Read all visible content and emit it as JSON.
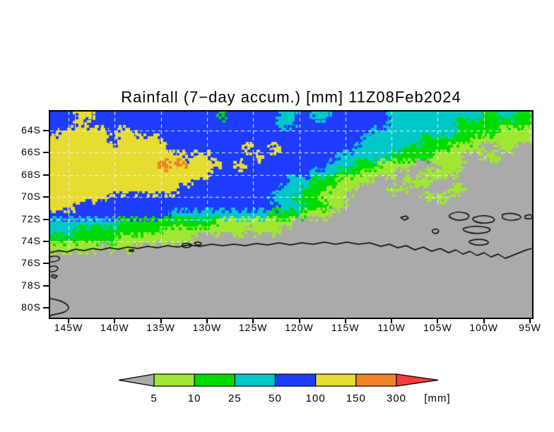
{
  "page_background": "#ffffff",
  "chart_data": {
    "type": "heatmap",
    "title": "Rainfall (7−day accum.) [mm] 11Z08Feb2024",
    "xlabel": "",
    "ylabel": "",
    "x_ticks": [
      "145W",
      "140W",
      "135W",
      "130W",
      "125W",
      "120W",
      "115W",
      "110W",
      "105W",
      "100W",
      "95W"
    ],
    "y_ticks": [
      "64S",
      "66S",
      "68S",
      "70S",
      "72S",
      "74S",
      "76S",
      "78S",
      "80S"
    ],
    "units": "[mm]",
    "levels": [
      5,
      10,
      25,
      50,
      100,
      150,
      300
    ],
    "legend_position": "bottom",
    "grid_on": true,
    "gridline_color": "#f2f2f2",
    "coastline_color": "#000000",
    "palette": {
      ".": "#aaaaaa",
      "L": "#a0e632",
      "G": "#00dc00",
      "C": "#00c8c8",
      "B": "#1e3cff",
      "Y": "#e6dc32",
      "O": "#f08228",
      "R": "#fa3c3c"
    },
    "palette_meaning": {
      ".": "below 5 mm",
      "L": "5-10 mm",
      "G": "10-25 mm",
      "C": "25-50 mm",
      "B": "50-100 mm",
      "Y": "100-150 mm",
      "O": "150-300 mm",
      "R": "above 300 mm"
    },
    "grid": [
      "BBBYYBBBBBBBBBBBBBBBGBBBBBBCCBBCCBBBBBBBCCCCCCCCCCCGGCCGG",
      "BBBYBBBBBBBBBBBBBBBBBBBBBBBCCBBBBBBBBBBBCCCCCCCCGGGGGGGGG",
      "BYYYYYYBYYBBBBBBBBBBBBBBBBBBBBBBBBBBBBCCCCCCCCCCGGGGGLLLL",
      "YYYYYYYBYYYYYBBBBBBBBBBBBBBBBBBBBBBBBCCCCCCCGGGGGGLLLLLLL",
      "YYYYYYYYYYYYYYBBBBBBBBBYBBYBBBBBBBBBCCCCCCGGGGGLLLL..LL..",
      "YYYYYYYYYYYYYYYYBYYBBBBBYBBBBBBBBBCCCCCCGGGGGLLLL..LL....",
      "YYYYYYYYYYYYYOYOYYYYBBYBBBBBBBBBBCCCGGGLLLL...LLL........",
      "YYYYYYYYYYYYYYYYYYYBBBBBBBBBBBBCCCGGGLLLL...LLLL.........",
      "YYYYYYYYYYYYYYYYYBBBBBBBBBBBCCCGGGLLLL....LLL............",
      "YYYYYYYYYYYYYYYBBBBBBBBBBBBCCCGGGLLL....LL.....LL........",
      "YYYYYYYBBBBBBBBBBBBBBBBBBBCCCGGGLLL.........LLL..........",
      "YYYBBBBBBBBBBBBBBBBBBBBBBBBCCCGGGLL......................",
      "BBBBBBBBBBBBBBCCCCCCCCCCCCGGGGLLL........................",
      "CCCCCCCCGGGGGGGGGGGGLLLLLLLLL............................",
      "CCCGGGGGGGGGGLLLLLLLLLL.LLL..............................",
      "GGGGGGGGLLLLLLLLL........................................",
      "LLLLLL.LLL...............................................",
      ".........................................................",
      ".........................................................",
      ".........................................................",
      ".........................................................",
      ".........................................................",
      ".........................................................",
      ".........................................................",
      "........................................................."
    ],
    "coastlines": [
      "M0,200L12,197L24,199L36,195L48,197L60,194L72,196L84,193L96,195L110,192L124,194L138,191L152,193L166,190L180,192L196,189L212,191L228,188L244,190L260,188L276,190L292,187L308,189L324,186L340,189L356,186L372,188L388,185L404,188L420,185L436,188L452,186L468,191L480,188L492,193L504,190L516,196L528,192L540,198L552,194L564,200L574,196L584,202L594,198L604,204L614,200L624,206L634,202L644,208L654,204L664,200L674,196L682,194",
      "M0,265C22,268,34,278,20,284C10,288,2,287,0,290",
      "M0,206C10,203,17,207,11,211C6,214,1,212,0,214",
      "M0,220C8,217,14,221,9,225C5,228,0,226,0,228",
      "M3,231L10,233L7,236L2,234Z",
      "M187,188Q193,185,199,188Q202,190,197,192Q190,194,187,191Z",
      "M204,186Q209,184,213,186Q215,188,212,189Q206,190,204,186Z",
      "M112,196L118,196L118,198L112,198Z",
      "M566,146Q576,140,588,144Q596,147,590,152Q578,156,570,152Q562,149,566,146Z",
      "M600,150Q614,145,626,150Q632,154,624,157Q610,160,600,155Q596,152,600,150Z",
      "M640,146Q652,142,664,147Q669,151,661,153Q649,156,640,151Z",
      "M672,148Q678,145,682,147L682,151Q676,153,672,151Z",
      "M586,165Q604,160,620,165Q626,168,618,171Q602,175,588,170Q582,167,586,165Z",
      "M594,183Q608,179,618,183Q623,186,617,188Q605,191,596,187Q591,185,594,183Z",
      "M541,168Q545,165,549,168Q551,170,548,172Q544,174,541,171Z",
      "M496,150L504,148L507,151L501,154Z"
    ],
    "colorbar": {
      "labels": [
        "5",
        "10",
        "25",
        "50",
        "100",
        "150",
        "300"
      ],
      "unit_label": "[mm]",
      "segments": [
        "#a0e632",
        "#00dc00",
        "#00c8c8",
        "#1e3cff",
        "#e6dc32",
        "#f08228"
      ],
      "below_color": "#aaaaaa",
      "above_color": "#fa3c3c",
      "outline_color": "#000000"
    }
  }
}
